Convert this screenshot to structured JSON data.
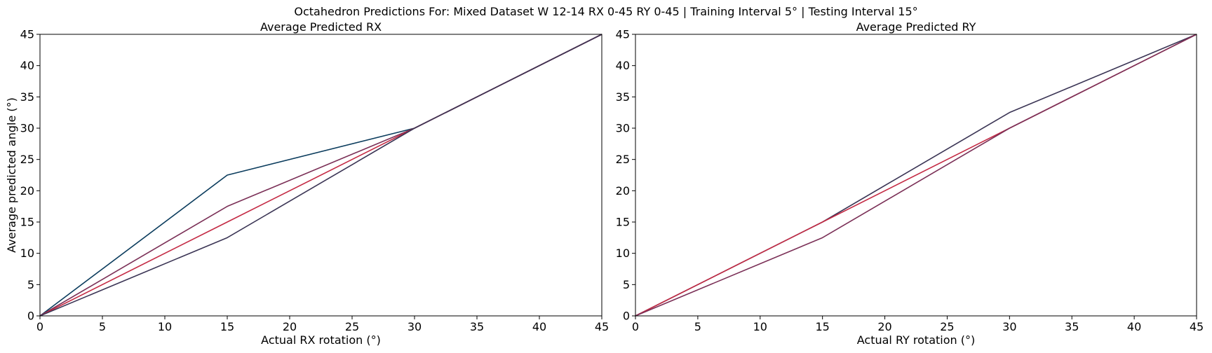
{
  "figure": {
    "suptitle": "Octahedron Predictions For: Mixed Dataset W 12-14 RX 0-45 RY 0-45 | Training Interval 5° | Testing Interval 15°"
  },
  "chart_data": [
    {
      "type": "line",
      "title": "Average Predicted RX",
      "xlabel": "Actual RX rotation (°)",
      "ylabel": "Average predicted angle (°)",
      "xlim": [
        0,
        45
      ],
      "ylim": [
        0,
        45
      ],
      "xticks": [
        0,
        5,
        10,
        15,
        20,
        25,
        30,
        35,
        40,
        45
      ],
      "yticks": [
        0,
        5,
        10,
        15,
        20,
        25,
        30,
        35,
        40,
        45
      ],
      "xtick_labels": [
        "0",
        "5",
        "10",
        "15",
        "20",
        "25",
        "30",
        "35",
        "40",
        "45"
      ],
      "ytick_labels": [
        "0",
        "5",
        "10",
        "15",
        "20",
        "25",
        "30",
        "35",
        "40",
        "45"
      ],
      "grid": false,
      "x": [
        0,
        15,
        30,
        45
      ],
      "series": [
        {
          "values": [
            0,
            22.5,
            30,
            45
          ],
          "color": "#0b3c5d"
        },
        {
          "values": [
            0,
            17.5,
            30,
            45
          ],
          "color": "#7b3057"
        },
        {
          "values": [
            0,
            15,
            30,
            45
          ],
          "color": "#c42a44"
        },
        {
          "values": [
            0,
            12.5,
            30,
            45
          ],
          "color": "#3b3555"
        }
      ]
    },
    {
      "type": "line",
      "title": "Average Predicted RY",
      "xlabel": "Actual RY rotation (°)",
      "ylabel": "",
      "xlim": [
        0,
        45
      ],
      "ylim": [
        0,
        45
      ],
      "xticks": [
        0,
        5,
        10,
        15,
        20,
        25,
        30,
        35,
        40,
        45
      ],
      "yticks": [
        0,
        5,
        10,
        15,
        20,
        25,
        30,
        35,
        40,
        45
      ],
      "xtick_labels": [
        "0",
        "5",
        "10",
        "15",
        "20",
        "25",
        "30",
        "35",
        "40",
        "45"
      ],
      "ytick_labels": [
        "0",
        "5",
        "10",
        "15",
        "20",
        "25",
        "30",
        "35",
        "40",
        "45"
      ],
      "grid": false,
      "x": [
        0,
        15,
        30,
        45
      ],
      "series": [
        {
          "values": [
            0,
            15,
            32.5,
            45
          ],
          "color": "#3b3555"
        },
        {
          "values": [
            0,
            15,
            30,
            45
          ],
          "color": "#c42a44"
        },
        {
          "values": [
            0,
            12.5,
            30,
            45
          ],
          "color": "#7b3057"
        }
      ]
    }
  ]
}
